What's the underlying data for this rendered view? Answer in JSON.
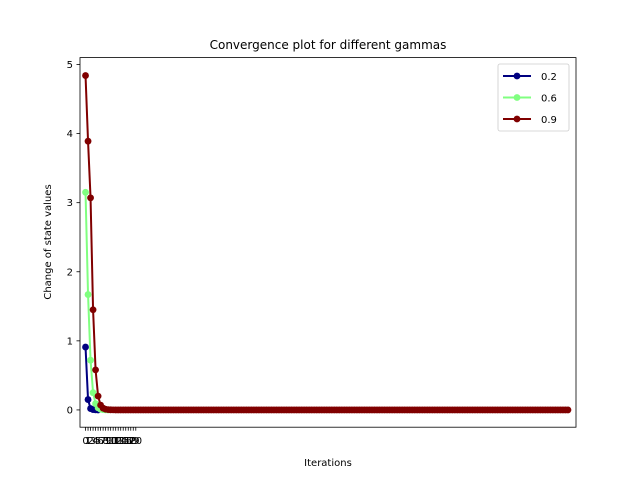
{
  "chart_data": {
    "type": "line",
    "title": "Convergence plot for different gammas",
    "xlabel": "Iterations",
    "ylabel": "Change of state values",
    "ylim": [
      -0.25,
      5.1
    ],
    "xlim": [
      -2.2,
      195.2
    ],
    "grid": false,
    "legend_position": "top-right",
    "y_ticks": [
      0,
      1,
      2,
      3,
      4,
      5
    ],
    "x_ticks": [
      0,
      1,
      2,
      3,
      4,
      5,
      6,
      7,
      8,
      9,
      10,
      11,
      12,
      13,
      14,
      15,
      16,
      17,
      18,
      19,
      20
    ],
    "series": [
      {
        "name": "0.2",
        "color": "#000080",
        "values": [
          0.91,
          0.15,
          0.02,
          0.005,
          0.001,
          0
        ]
      },
      {
        "name": "0.6",
        "color": "#80ff80",
        "values": [
          3.15,
          1.67,
          0.72,
          0.25,
          0.09,
          0.03,
          0.01,
          0.003,
          0.001,
          0
        ]
      },
      {
        "name": "0.9",
        "color": "#800000",
        "values": [
          4.84,
          3.89,
          3.07,
          1.45,
          0.58,
          0.2,
          0.07,
          0.025,
          0.01,
          0.004,
          0.002,
          0.001,
          0
        ],
        "total_points": 193
      }
    ]
  }
}
